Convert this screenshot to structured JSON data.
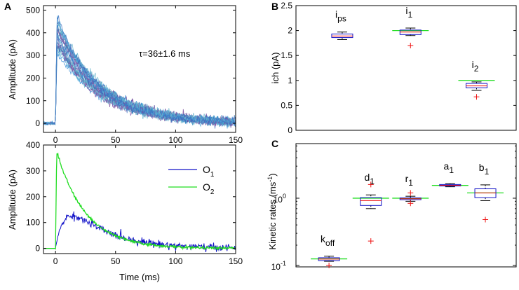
{
  "panel_labels": {
    "a": "A",
    "b": "B",
    "c": "C"
  },
  "chart_data": [
    {
      "id": "A_top",
      "type": "line",
      "title": "",
      "xlabel": "",
      "ylabel": "Amplitude (pA)",
      "xlim": [
        -10,
        150
      ],
      "ylim": [
        -40,
        520
      ],
      "xticks": [
        "0",
        "50",
        "100",
        "150"
      ],
      "yticks": [
        "0",
        "100",
        "200",
        "300",
        "400",
        "500"
      ],
      "annotation": "τ=36±1.6 ms",
      "traces": {
        "count": 24,
        "onset_ms": 0,
        "peak_min_pA": 320,
        "peak_max_pA": 470,
        "tau_ms": 36,
        "baseline_pA": 0,
        "colors": [
          "#3a8fd6",
          "#4aa7d8",
          "#6fb8cf",
          "#3b6fbf",
          "#5b4fa3",
          "#7a4a9c",
          "#8a5aa8",
          "#2f8fb8",
          "#56a0c8",
          "#6d63b0"
        ]
      }
    },
    {
      "id": "A_bottom",
      "type": "line",
      "title": "",
      "xlabel": "Time (ms)",
      "ylabel": "Amplitude (pA)",
      "xlim": [
        -10,
        150
      ],
      "ylim": [
        -20,
        400
      ],
      "xticks": [
        "0",
        "50",
        "100",
        "150"
      ],
      "yticks": [
        "0",
        "100",
        "200",
        "300",
        "400"
      ],
      "legend": "top-right",
      "series": [
        {
          "name": "O",
          "sub": "1",
          "color": "#1010c8",
          "peak_pA": 140,
          "peak_ms": 22,
          "rise_tau_ms": 9,
          "decay_tau_ms": 32
        },
        {
          "name": "O",
          "sub": "2",
          "color": "#22dd22",
          "peak_pA": 375,
          "peak_ms": 1,
          "decay_tau_ms": 24
        }
      ]
    },
    {
      "id": "B",
      "type": "boxplot",
      "title": "",
      "xlabel": "",
      "ylabel": "ich (pA)",
      "ylim": [
        0,
        2.5
      ],
      "yticks": [
        "0",
        "0.5",
        "1",
        "1.5",
        "2",
        "2.5"
      ],
      "groups": [
        {
          "base": "i",
          "sub": "ps",
          "min": 1.82,
          "q1": 1.86,
          "median": 1.89,
          "q3": 1.93,
          "max": 1.97,
          "outliers": [],
          "reference": null
        },
        {
          "base": "i",
          "sub": "1",
          "min": 1.9,
          "q1": 1.92,
          "median": 1.97,
          "q3": 2.01,
          "max": 2.05,
          "outliers": [
            1.7
          ],
          "reference": 2.0
        },
        {
          "base": "i",
          "sub": "2",
          "min": 0.8,
          "q1": 0.85,
          "median": 0.89,
          "q3": 0.94,
          "max": 0.97,
          "outliers": [
            0.67
          ],
          "reference": 1.0
        }
      ]
    },
    {
      "id": "C",
      "type": "boxplot",
      "scale": "log",
      "title": "",
      "xlabel": "",
      "ylabel": "Kinetic rates (ms",
      "ylabel_sup": "-1",
      "ylabel_tail": ")",
      "ylim": [
        0.095,
        6.5
      ],
      "yticks": [
        {
          "base": "10",
          "exp": "-1",
          "value": 0.1
        },
        {
          "base": "10",
          "exp": "0",
          "value": 1
        }
      ],
      "groups": [
        {
          "base": "k",
          "sub": "off",
          "min": 0.115,
          "q1": 0.118,
          "median": 0.124,
          "q3": 0.13,
          "max": 0.137,
          "outliers": [
            0.1
          ],
          "reference": 0.125
        },
        {
          "base": "d",
          "sub": "1",
          "min": 0.7,
          "q1": 0.78,
          "median": 0.92,
          "q3": 1.02,
          "max": 1.12,
          "outliers": [
            1.6,
            0.23
          ],
          "reference": 1.0
        },
        {
          "base": "r",
          "sub": "1",
          "min": 0.9,
          "q1": 0.95,
          "median": 0.98,
          "q3": 1.01,
          "max": 1.07,
          "outliers": [
            1.2,
            0.84
          ],
          "reference": 1.0
        },
        {
          "base": "a",
          "sub": "1",
          "min": 1.48,
          "q1": 1.52,
          "median": 1.56,
          "q3": 1.6,
          "max": 1.65,
          "outliers": [],
          "reference": 1.55
        },
        {
          "base": "b",
          "sub": "1",
          "min": 0.92,
          "q1": 1.02,
          "median": 1.2,
          "q3": 1.38,
          "max": 1.58,
          "outliers": [
            0.48
          ],
          "reference": 1.2
        }
      ]
    }
  ]
}
